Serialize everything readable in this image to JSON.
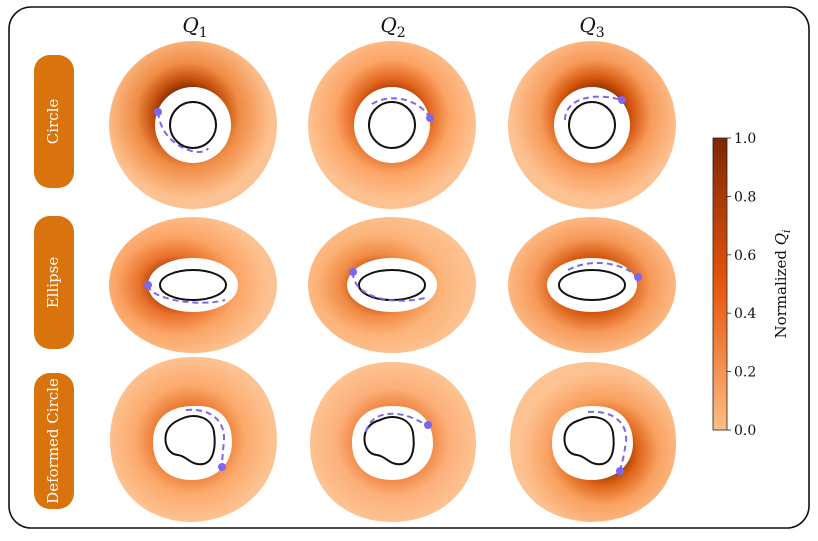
{
  "columns": [
    {
      "symbol": "Q",
      "subscript": "1"
    },
    {
      "symbol": "Q",
      "subscript": "2"
    },
    {
      "symbol": "Q",
      "subscript": "3"
    }
  ],
  "rows": [
    {
      "label": "Circle"
    },
    {
      "label": "Ellipse"
    },
    {
      "label": "Deformed Circle"
    }
  ],
  "colorbar": {
    "label_prefix": "Normalized ",
    "label_symbol": "Q",
    "label_subscript": "i",
    "ticks": [
      "0.0",
      "0.2",
      "0.4",
      "0.6",
      "0.8",
      "1.0"
    ],
    "min": 0.0,
    "max": 1.0,
    "color_low": "#fdbe85",
    "color_mid": "#e6550d",
    "color_high": "#7f2704"
  },
  "colors": {
    "row_label_bg": "#d9730d",
    "marker": "#7b68ee",
    "dashed_path": "#7b68ee",
    "outline": "#111111",
    "frame": "#111111"
  }
}
